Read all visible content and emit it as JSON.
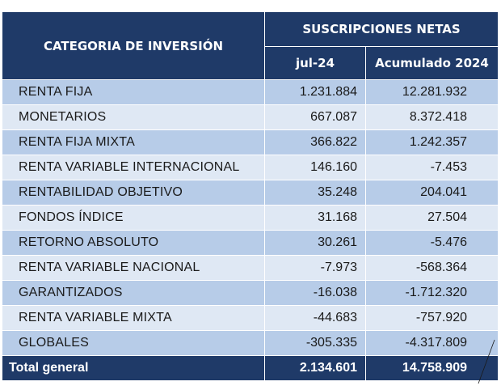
{
  "header": {
    "category": "CATEGORIA DE INVERSIÓN",
    "group": "SUSCRIPCIONES NETAS",
    "col1": "jul-24",
    "col2": "Acumulado 2024"
  },
  "rows": [
    {
      "category": "RENTA FIJA",
      "jul": "1.231.884",
      "acum": "12.281.932"
    },
    {
      "category": "MONETARIOS",
      "jul": "667.087",
      "acum": "8.372.418"
    },
    {
      "category": "RENTA FIJA MIXTA",
      "jul": "366.822",
      "acum": "1.242.357"
    },
    {
      "category": "RENTA VARIABLE INTERNACIONAL",
      "jul": "146.160",
      "acum": "-7.453"
    },
    {
      "category": "RENTABILIDAD OBJETIVO",
      "jul": "35.248",
      "acum": "204.041"
    },
    {
      "category": "FONDOS ÍNDICE",
      "jul": "31.168",
      "acum": "27.504"
    },
    {
      "category": "RETORNO ABSOLUTO",
      "jul": "30.261",
      "acum": "-5.476"
    },
    {
      "category": "RENTA VARIABLE NACIONAL",
      "jul": "-7.973",
      "acum": "-568.364"
    },
    {
      "category": "GARANTIZADOS",
      "jul": "-16.038",
      "acum": "-1.712.320"
    },
    {
      "category": "RENTA VARIABLE MIXTA",
      "jul": "-44.683",
      "acum": "-757.920"
    },
    {
      "category": "GLOBALES",
      "jul": "-305.335",
      "acum": "-4.317.809"
    }
  ],
  "total": {
    "category": "Total general",
    "jul": "2.134.601",
    "acum": "14.758.909"
  },
  "colors": {
    "header_bg": "#1f3a68",
    "row_dark": "#b7cce8",
    "row_light": "#dfe8f4"
  }
}
